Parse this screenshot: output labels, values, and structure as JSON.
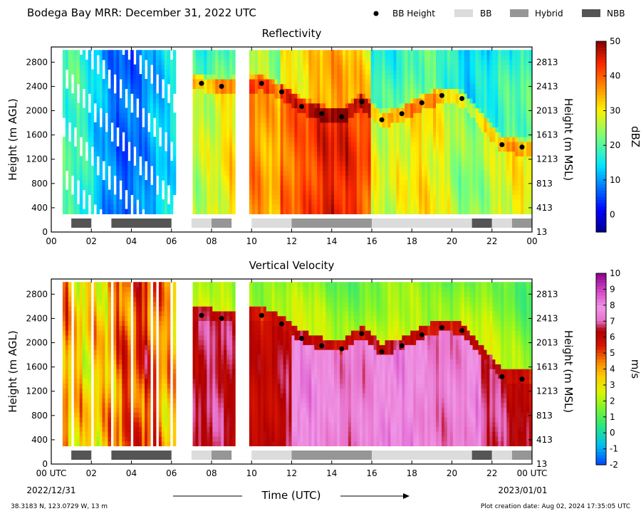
{
  "figure": {
    "title": "Bodega Bay MRR:  December 31, 2022 UTC",
    "xlabel": "Time (UTC)",
    "x_start_date": "2022/12/31",
    "x_end_date": "2023/01/01",
    "location": "38.3183 N, 123.0729 W, 13 m",
    "creation": "Plot creation date: Aug 02, 2024 17:35:05 UTC"
  },
  "legend": [
    {
      "label": "BB Height",
      "marker": "dot",
      "color": "#000000"
    },
    {
      "label": "BB",
      "marker": "rect",
      "color": "#dcdcdc"
    },
    {
      "label": "Hybrid",
      "marker": "rect",
      "color": "#969696"
    },
    {
      "label": "NBB",
      "marker": "rect",
      "color": "#555555"
    }
  ],
  "chart_data": [
    {
      "type": "heatmap",
      "title": "Reflectivity",
      "xlabel": "",
      "ylabel": "Height (m AGL)",
      "ylabel_right": "Height (m MSL)",
      "xlim": [
        0,
        24
      ],
      "ylim": [
        0,
        3050
      ],
      "x_tick_labels": [
        "00",
        "02",
        "04",
        "06",
        "08",
        "10",
        "12",
        "14",
        "16",
        "18",
        "20",
        "22",
        "00"
      ],
      "y_ticks": [
        0,
        400,
        800,
        1200,
        1600,
        2000,
        2400,
        2800
      ],
      "y_ticks_right": [
        13,
        413,
        813,
        1213,
        1613,
        2013,
        2413,
        2813
      ],
      "colorbar": {
        "label": "dBZ",
        "range": [
          -5,
          50
        ],
        "ticks": [
          0,
          10,
          20,
          30,
          40,
          50
        ],
        "colormap": "jet"
      },
      "bb_height": {
        "x": [
          7.5,
          8.5,
          10.5,
          11.5,
          12.5,
          13.5,
          14.5,
          15.5,
          16.5,
          17.5,
          18.5,
          19.5,
          20.5,
          22.5,
          23.5
        ],
        "y": [
          2450,
          2400,
          2450,
          2310,
          2070,
          1950,
          1900,
          2150,
          1850,
          1950,
          2130,
          2250,
          2200,
          1440,
          1400
        ]
      },
      "bb_type_segments": [
        {
          "start": 1.0,
          "end": 2.0,
          "type": "NBB"
        },
        {
          "start": 3.0,
          "end": 6.0,
          "type": "NBB"
        },
        {
          "start": 7.0,
          "end": 8.0,
          "type": "BB"
        },
        {
          "start": 8.0,
          "end": 9.0,
          "type": "Hybrid"
        },
        {
          "start": 10.0,
          "end": 12.0,
          "type": "BB"
        },
        {
          "start": 12.0,
          "end": 16.0,
          "type": "Hybrid"
        },
        {
          "start": 16.0,
          "end": 21.0,
          "type": "BB"
        },
        {
          "start": 21.0,
          "end": 22.0,
          "type": "NBB"
        },
        {
          "start": 22.0,
          "end": 23.0,
          "type": "BB"
        },
        {
          "start": 23.0,
          "end": 24.0,
          "type": "Hybrid"
        }
      ]
    },
    {
      "type": "heatmap",
      "title": "Vertical Velocity",
      "xlabel": "Time (UTC)",
      "ylabel": "Height (m AGL)",
      "ylabel_right": "Height (m MSL)",
      "xlim": [
        0,
        24
      ],
      "ylim": [
        0,
        3050
      ],
      "x_tick_labels": [
        "00 UTC",
        "02",
        "04",
        "06",
        "08",
        "10",
        "12",
        "14",
        "16",
        "18",
        "20",
        "22",
        "00 UTC"
      ],
      "y_ticks": [
        0,
        400,
        800,
        1200,
        1600,
        2000,
        2400,
        2800
      ],
      "y_ticks_right": [
        13,
        413,
        813,
        1213,
        1613,
        2013,
        2413,
        2813
      ],
      "colorbar": {
        "label": "m/s",
        "range": [
          -2,
          10
        ],
        "ticks": [
          -2,
          -1,
          0,
          1,
          2,
          3,
          4,
          5,
          6,
          7,
          8,
          9,
          10
        ],
        "colormap": "velocity"
      },
      "bb_height": {
        "x": [
          7.5,
          8.5,
          10.5,
          11.5,
          12.5,
          13.5,
          14.5,
          15.5,
          16.5,
          17.5,
          18.5,
          19.5,
          20.5,
          22.5,
          23.5
        ],
        "y": [
          2450,
          2400,
          2450,
          2310,
          2070,
          1950,
          1900,
          2150,
          1850,
          1950,
          2130,
          2250,
          2200,
          1440,
          1400
        ]
      },
      "bb_type_segments": [
        {
          "start": 1.0,
          "end": 2.0,
          "type": "NBB"
        },
        {
          "start": 3.0,
          "end": 6.0,
          "type": "NBB"
        },
        {
          "start": 7.0,
          "end": 8.0,
          "type": "BB"
        },
        {
          "start": 8.0,
          "end": 9.0,
          "type": "Hybrid"
        },
        {
          "start": 10.0,
          "end": 12.0,
          "type": "BB"
        },
        {
          "start": 12.0,
          "end": 16.0,
          "type": "Hybrid"
        },
        {
          "start": 16.0,
          "end": 21.0,
          "type": "BB"
        },
        {
          "start": 21.0,
          "end": 22.0,
          "type": "NBB"
        },
        {
          "start": 22.0,
          "end": 23.0,
          "type": "BB"
        },
        {
          "start": 23.0,
          "end": 24.0,
          "type": "Hybrid"
        }
      ]
    }
  ]
}
